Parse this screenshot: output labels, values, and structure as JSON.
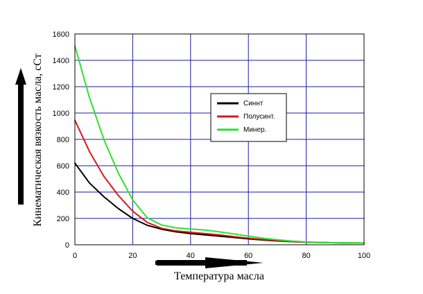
{
  "chart_data": {
    "type": "line",
    "xlabel": "Температура масла",
    "ylabel": "Кинематическая вязкость масла, сСт",
    "xlim": [
      0,
      100
    ],
    "ylim": [
      0,
      1600
    ],
    "xticks": [
      0,
      20,
      40,
      60,
      80,
      100
    ],
    "yticks": [
      0,
      200,
      400,
      600,
      800,
      1000,
      1200,
      1400,
      1600
    ],
    "grid": true,
    "grid_color": "#1a1aa6",
    "legend_position": "center-right",
    "series": [
      {
        "name": "Синнт",
        "color": "#000000",
        "x": [
          0,
          5,
          10,
          15,
          20,
          25,
          30,
          35,
          40,
          45,
          50,
          55,
          60,
          65,
          70,
          75,
          80,
          85,
          90,
          95,
          100
        ],
        "y": [
          620,
          470,
          365,
          275,
          200,
          148,
          118,
          98,
          85,
          75,
          65,
          55,
          45,
          36,
          29,
          24,
          20,
          17,
          15,
          14,
          13
        ]
      },
      {
        "name": "Полусинт.",
        "color": "#d81818",
        "x": [
          0,
          5,
          10,
          15,
          20,
          25,
          30,
          35,
          40,
          45,
          50,
          55,
          60,
          65,
          70,
          75,
          80,
          85,
          90,
          95,
          100
        ],
        "y": [
          945,
          710,
          520,
          375,
          255,
          170,
          125,
          105,
          95,
          85,
          75,
          62,
          50,
          40,
          32,
          25,
          20,
          17,
          15,
          14,
          13
        ]
      },
      {
        "name": "Минер.",
        "color": "#2ee02e",
        "x": [
          0,
          5,
          10,
          15,
          20,
          25,
          30,
          35,
          40,
          45,
          50,
          55,
          60,
          65,
          70,
          75,
          80,
          85,
          90,
          95,
          100
        ],
        "y": [
          1510,
          1120,
          800,
          545,
          340,
          205,
          150,
          128,
          120,
          112,
          98,
          82,
          66,
          50,
          38,
          28,
          22,
          18,
          16,
          15,
          14
        ]
      }
    ]
  }
}
